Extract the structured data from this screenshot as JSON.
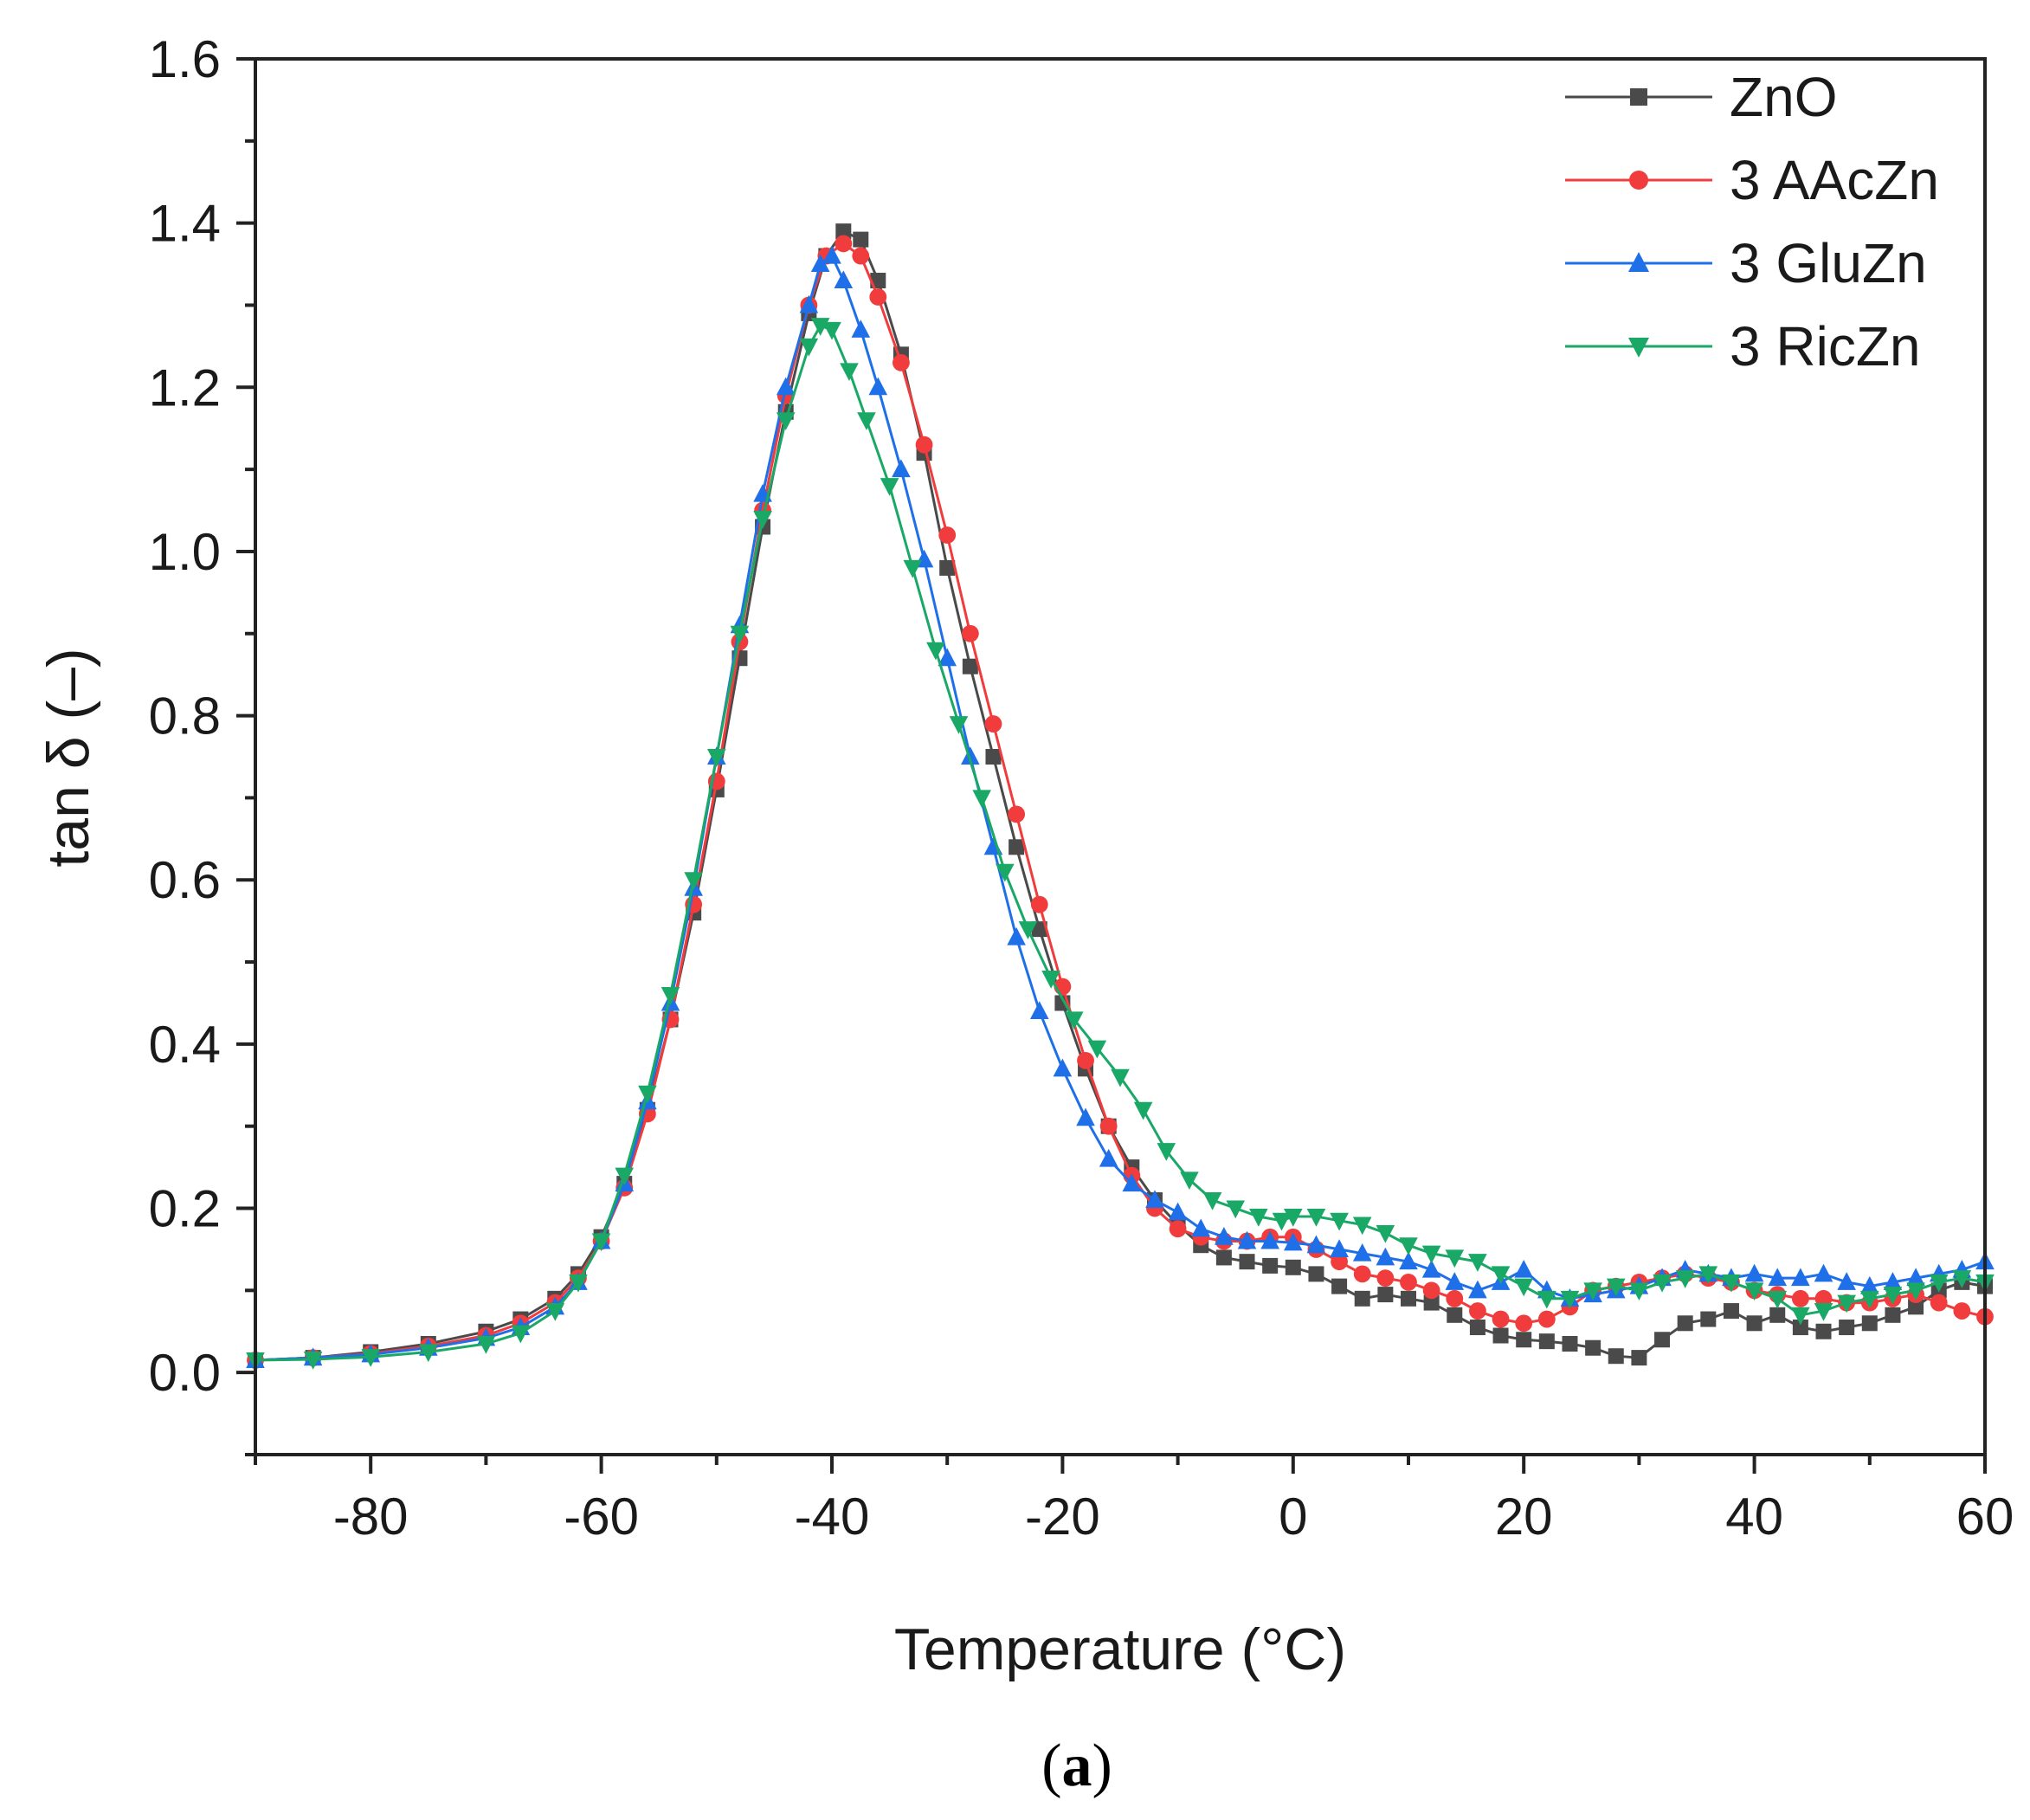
{
  "chart_data": {
    "type": "scatter",
    "title": "",
    "xlabel": "Temperature (°C)",
    "ylabel": "tan δ (–)",
    "xlim": [
      -90,
      60
    ],
    "ylim": [
      -0.1,
      1.6
    ],
    "xticks": [
      -80,
      -60,
      -40,
      -20,
      0,
      20,
      40,
      60
    ],
    "xtick_labels": [
      "-80",
      "-60",
      "-40",
      "-20",
      "0",
      "20",
      "40",
      "60"
    ],
    "yticks": [
      0.0,
      0.2,
      0.4,
      0.6,
      0.8,
      1.0,
      1.2,
      1.4,
      1.6
    ],
    "ytick_labels": [
      "0.0",
      "0.2",
      "0.4",
      "0.6",
      "0.8",
      "1.0",
      "1.2",
      "1.4",
      "1.6"
    ],
    "legend_position": "top-right",
    "panel_label": {
      "open": "(",
      "letter": "a",
      "close": ")"
    },
    "series": [
      {
        "name": "ZnO",
        "color": "#4a4a4a",
        "marker": "square",
        "points": [
          [
            -90,
            0.015
          ],
          [
            -85,
            0.018
          ],
          [
            -80,
            0.025
          ],
          [
            -75,
            0.035
          ],
          [
            -70,
            0.05
          ],
          [
            -67,
            0.065
          ],
          [
            -64,
            0.09
          ],
          [
            -62,
            0.12
          ],
          [
            -60,
            0.165
          ],
          [
            -58,
            0.23
          ],
          [
            -56,
            0.32
          ],
          [
            -54,
            0.43
          ],
          [
            -52,
            0.56
          ],
          [
            -50,
            0.71
          ],
          [
            -48,
            0.87
          ],
          [
            -46,
            1.03
          ],
          [
            -44,
            1.17
          ],
          [
            -42,
            1.29
          ],
          [
            -40.5,
            1.36
          ],
          [
            -39,
            1.39
          ],
          [
            -37.5,
            1.38
          ],
          [
            -36,
            1.33
          ],
          [
            -34,
            1.24
          ],
          [
            -32,
            1.12
          ],
          [
            -30,
            0.98
          ],
          [
            -28,
            0.86
          ],
          [
            -26,
            0.75
          ],
          [
            -24,
            0.64
          ],
          [
            -22,
            0.54
          ],
          [
            -20,
            0.45
          ],
          [
            -18,
            0.37
          ],
          [
            -16,
            0.3
          ],
          [
            -14,
            0.25
          ],
          [
            -12,
            0.21
          ],
          [
            -10,
            0.18
          ],
          [
            -8,
            0.155
          ],
          [
            -6,
            0.14
          ],
          [
            -4,
            0.135
          ],
          [
            -2,
            0.13
          ],
          [
            0,
            0.128
          ],
          [
            2,
            0.12
          ],
          [
            4,
            0.105
          ],
          [
            6,
            0.09
          ],
          [
            8,
            0.095
          ],
          [
            10,
            0.09
          ],
          [
            12,
            0.085
          ],
          [
            14,
            0.07
          ],
          [
            16,
            0.055
          ],
          [
            18,
            0.045
          ],
          [
            20,
            0.04
          ],
          [
            22,
            0.038
          ],
          [
            24,
            0.035
          ],
          [
            26,
            0.03
          ],
          [
            28,
            0.02
          ],
          [
            30,
            0.018
          ],
          [
            32,
            0.04
          ],
          [
            34,
            0.06
          ],
          [
            36,
            0.065
          ],
          [
            38,
            0.075
          ],
          [
            40,
            0.06
          ],
          [
            42,
            0.07
          ],
          [
            44,
            0.055
          ],
          [
            46,
            0.05
          ],
          [
            48,
            0.055
          ],
          [
            50,
            0.06
          ],
          [
            52,
            0.07
          ],
          [
            54,
            0.08
          ],
          [
            56,
            0.1
          ],
          [
            58,
            0.11
          ],
          [
            60,
            0.105
          ]
        ]
      },
      {
        "name": "3 AAcZn",
        "color": "#f03c3c",
        "marker": "circle",
        "points": [
          [
            -90,
            0.015
          ],
          [
            -85,
            0.018
          ],
          [
            -80,
            0.023
          ],
          [
            -75,
            0.032
          ],
          [
            -70,
            0.045
          ],
          [
            -67,
            0.06
          ],
          [
            -64,
            0.085
          ],
          [
            -62,
            0.115
          ],
          [
            -60,
            0.16
          ],
          [
            -58,
            0.225
          ],
          [
            -56,
            0.315
          ],
          [
            -54,
            0.43
          ],
          [
            -52,
            0.57
          ],
          [
            -50,
            0.72
          ],
          [
            -48,
            0.89
          ],
          [
            -46,
            1.05
          ],
          [
            -44,
            1.19
          ],
          [
            -42,
            1.3
          ],
          [
            -40.5,
            1.36
          ],
          [
            -39,
            1.375
          ],
          [
            -37.5,
            1.36
          ],
          [
            -36,
            1.31
          ],
          [
            -34,
            1.23
          ],
          [
            -32,
            1.13
          ],
          [
            -30,
            1.02
          ],
          [
            -28,
            0.9
          ],
          [
            -26,
            0.79
          ],
          [
            -24,
            0.68
          ],
          [
            -22,
            0.57
          ],
          [
            -20,
            0.47
          ],
          [
            -18,
            0.38
          ],
          [
            -16,
            0.3
          ],
          [
            -14,
            0.24
          ],
          [
            -12,
            0.2
          ],
          [
            -10,
            0.175
          ],
          [
            -8,
            0.165
          ],
          [
            -6,
            0.16
          ],
          [
            -4,
            0.16
          ],
          [
            -2,
            0.165
          ],
          [
            0,
            0.165
          ],
          [
            2,
            0.15
          ],
          [
            4,
            0.135
          ],
          [
            6,
            0.12
          ],
          [
            8,
            0.115
          ],
          [
            10,
            0.11
          ],
          [
            12,
            0.1
          ],
          [
            14,
            0.09
          ],
          [
            16,
            0.075
          ],
          [
            18,
            0.065
          ],
          [
            20,
            0.06
          ],
          [
            22,
            0.065
          ],
          [
            24,
            0.08
          ],
          [
            26,
            0.1
          ],
          [
            28,
            0.105
          ],
          [
            30,
            0.11
          ],
          [
            32,
            0.115
          ],
          [
            34,
            0.12
          ],
          [
            36,
            0.115
          ],
          [
            38,
            0.11
          ],
          [
            40,
            0.1
          ],
          [
            42,
            0.095
          ],
          [
            44,
            0.09
          ],
          [
            46,
            0.09
          ],
          [
            48,
            0.085
          ],
          [
            50,
            0.085
          ],
          [
            52,
            0.09
          ],
          [
            54,
            0.095
          ],
          [
            56,
            0.085
          ],
          [
            58,
            0.075
          ],
          [
            60,
            0.068
          ]
        ]
      },
      {
        "name": "3 GluZn",
        "color": "#1f6fe8",
        "marker": "triangle-up",
        "points": [
          [
            -90,
            0.015
          ],
          [
            -85,
            0.018
          ],
          [
            -80,
            0.022
          ],
          [
            -75,
            0.03
          ],
          [
            -70,
            0.042
          ],
          [
            -67,
            0.055
          ],
          [
            -64,
            0.08
          ],
          [
            -62,
            0.11
          ],
          [
            -60,
            0.16
          ],
          [
            -58,
            0.23
          ],
          [
            -56,
            0.33
          ],
          [
            -54,
            0.45
          ],
          [
            -52,
            0.59
          ],
          [
            -50,
            0.75
          ],
          [
            -48,
            0.91
          ],
          [
            -46,
            1.07
          ],
          [
            -44,
            1.2
          ],
          [
            -42,
            1.3
          ],
          [
            -41,
            1.35
          ],
          [
            -40,
            1.36
          ],
          [
            -39,
            1.33
          ],
          [
            -37.5,
            1.27
          ],
          [
            -36,
            1.2
          ],
          [
            -34,
            1.1
          ],
          [
            -32,
            0.99
          ],
          [
            -30,
            0.87
          ],
          [
            -28,
            0.75
          ],
          [
            -26,
            0.64
          ],
          [
            -24,
            0.53
          ],
          [
            -22,
            0.44
          ],
          [
            -20,
            0.37
          ],
          [
            -18,
            0.31
          ],
          [
            -16,
            0.26
          ],
          [
            -14,
            0.23
          ],
          [
            -12,
            0.21
          ],
          [
            -10,
            0.195
          ],
          [
            -8,
            0.175
          ],
          [
            -6,
            0.165
          ],
          [
            -4,
            0.16
          ],
          [
            -2,
            0.16
          ],
          [
            0,
            0.158
          ],
          [
            2,
            0.155
          ],
          [
            4,
            0.15
          ],
          [
            6,
            0.145
          ],
          [
            8,
            0.14
          ],
          [
            10,
            0.135
          ],
          [
            12,
            0.125
          ],
          [
            14,
            0.11
          ],
          [
            16,
            0.1
          ],
          [
            18,
            0.11
          ],
          [
            20,
            0.125
          ],
          [
            22,
            0.1
          ],
          [
            24,
            0.09
          ],
          [
            26,
            0.095
          ],
          [
            28,
            0.1
          ],
          [
            30,
            0.105
          ],
          [
            32,
            0.115
          ],
          [
            34,
            0.125
          ],
          [
            36,
            0.12
          ],
          [
            38,
            0.115
          ],
          [
            40,
            0.12
          ],
          [
            42,
            0.115
          ],
          [
            44,
            0.115
          ],
          [
            46,
            0.12
          ],
          [
            48,
            0.11
          ],
          [
            50,
            0.105
          ],
          [
            52,
            0.11
          ],
          [
            54,
            0.115
          ],
          [
            56,
            0.12
          ],
          [
            58,
            0.125
          ],
          [
            60,
            0.135
          ]
        ]
      },
      {
        "name": "3 RicZn",
        "color": "#1aa867",
        "marker": "triangle-down",
        "points": [
          [
            -90,
            0.015
          ],
          [
            -85,
            0.016
          ],
          [
            -80,
            0.019
          ],
          [
            -75,
            0.025
          ],
          [
            -70,
            0.035
          ],
          [
            -67,
            0.048
          ],
          [
            -64,
            0.075
          ],
          [
            -62,
            0.11
          ],
          [
            -60,
            0.16
          ],
          [
            -58,
            0.24
          ],
          [
            -56,
            0.34
          ],
          [
            -54,
            0.46
          ],
          [
            -52,
            0.6
          ],
          [
            -50,
            0.75
          ],
          [
            -48,
            0.9
          ],
          [
            -46,
            1.04
          ],
          [
            -44,
            1.16
          ],
          [
            -42,
            1.25
          ],
          [
            -41,
            1.275
          ],
          [
            -40,
            1.27
          ],
          [
            -38.5,
            1.22
          ],
          [
            -37,
            1.16
          ],
          [
            -35,
            1.08
          ],
          [
            -33,
            0.98
          ],
          [
            -31,
            0.88
          ],
          [
            -29,
            0.79
          ],
          [
            -27,
            0.7
          ],
          [
            -25,
            0.61
          ],
          [
            -23,
            0.54
          ],
          [
            -21,
            0.48
          ],
          [
            -19,
            0.43
          ],
          [
            -17,
            0.395
          ],
          [
            -15,
            0.36
          ],
          [
            -13,
            0.32
          ],
          [
            -11,
            0.27
          ],
          [
            -9,
            0.235
          ],
          [
            -7,
            0.21
          ],
          [
            -5,
            0.2
          ],
          [
            -3,
            0.19
          ],
          [
            -1,
            0.185
          ],
          [
            0,
            0.19
          ],
          [
            2,
            0.19
          ],
          [
            4,
            0.185
          ],
          [
            6,
            0.18
          ],
          [
            8,
            0.17
          ],
          [
            10,
            0.155
          ],
          [
            12,
            0.145
          ],
          [
            14,
            0.14
          ],
          [
            16,
            0.135
          ],
          [
            18,
            0.12
          ],
          [
            20,
            0.105
          ],
          [
            22,
            0.09
          ],
          [
            24,
            0.09
          ],
          [
            26,
            0.1
          ],
          [
            28,
            0.105
          ],
          [
            30,
            0.1
          ],
          [
            32,
            0.11
          ],
          [
            34,
            0.115
          ],
          [
            36,
            0.12
          ],
          [
            38,
            0.11
          ],
          [
            40,
            0.1
          ],
          [
            42,
            0.09
          ],
          [
            44,
            0.07
          ],
          [
            46,
            0.075
          ],
          [
            48,
            0.085
          ],
          [
            50,
            0.09
          ],
          [
            52,
            0.095
          ],
          [
            54,
            0.1
          ],
          [
            56,
            0.11
          ],
          [
            58,
            0.115
          ],
          [
            60,
            0.11
          ]
        ]
      }
    ]
  }
}
